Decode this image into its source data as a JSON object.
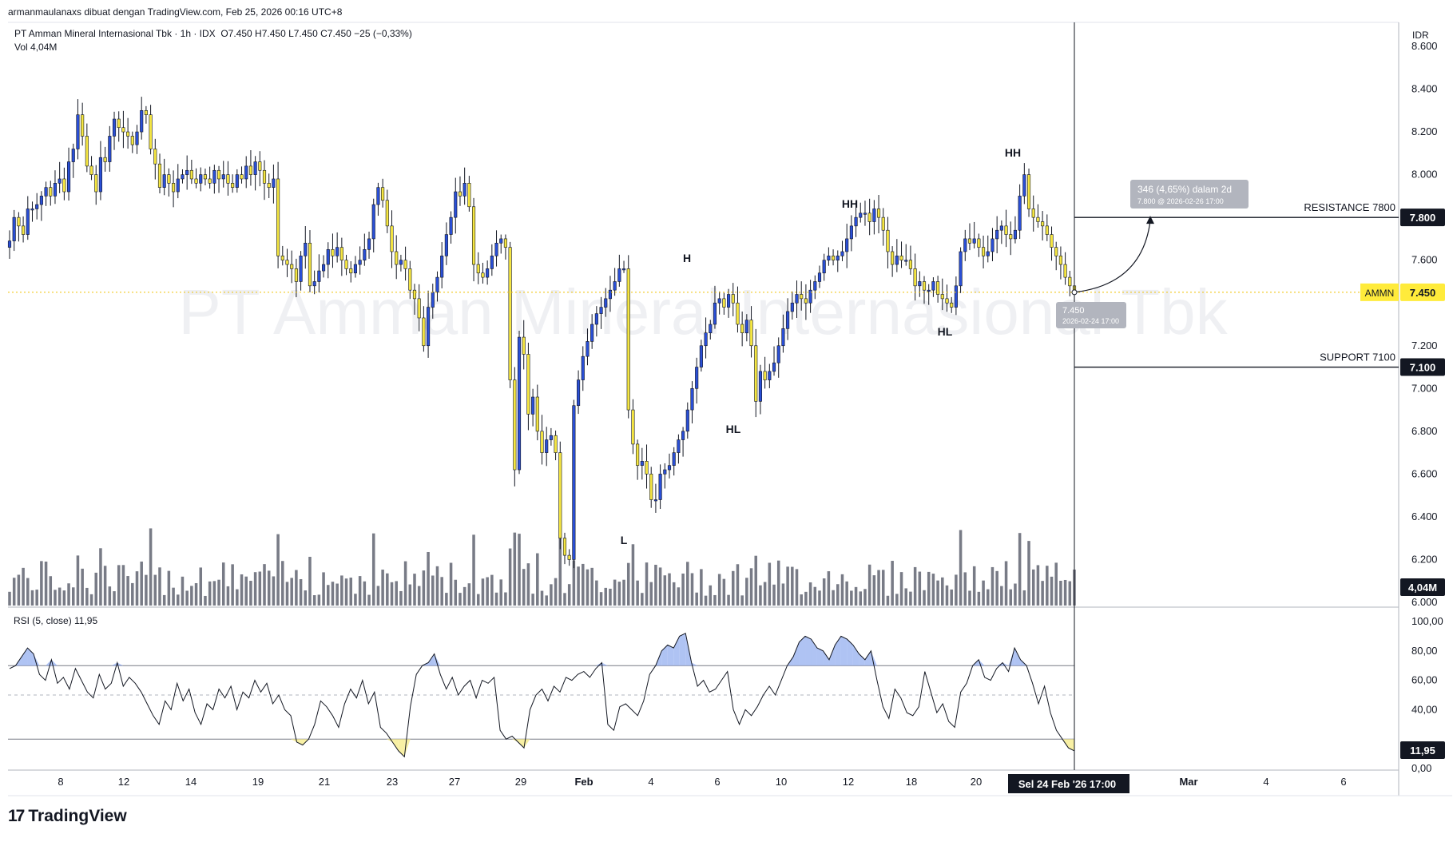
{
  "header": {
    "author_line": "armanmaulanaxs dibuat dengan TradingView.com, Feb 25, 2026 00:16 UTC+8",
    "symbol_line": "PT Amman Mineral Internasional Tbk · 1h · IDX",
    "ohlc": "O7.450  H7.450  L7.450  C7.450  −25 (−0,33%)",
    "volume_line": "Vol  4,04M",
    "currency": "IDR",
    "watermark": "PT Amman Mineral Internasional Tbk"
  },
  "brand": {
    "name": "TradingView",
    "logo_icon": "tradingview-logo-icon"
  },
  "colors": {
    "bull": "#2a4fd6",
    "bear": "#f5e642",
    "wick": "#131722",
    "volume": "#787b86",
    "rsi_line": "#131722",
    "rsi_ob_fill": "#9bb4f0",
    "rsi_os_fill": "#f7ee9a",
    "label_dark": "#131722",
    "label_current": "#ffeb3b",
    "annot_box": "#b2b5be"
  },
  "chart_data": {
    "type": "candlestick",
    "symbol": "AMMN",
    "timeframe": "1h",
    "y_axis": {
      "ticks": [
        6000,
        6200,
        6400,
        6600,
        6800,
        7000,
        7200,
        7400,
        7600,
        7800,
        8000,
        8200,
        8400,
        8600
      ],
      "tick_labels": [
        "6.000",
        "6.200",
        "6.400",
        "6.600",
        "6.800",
        "7.000",
        "7.200",
        "7.400",
        "7.600",
        "7.800",
        "8.000",
        "8.200",
        "8.400",
        "8.600"
      ],
      "range": [
        6000,
        8600
      ]
    },
    "x_axis": {
      "tick_labels": [
        "8",
        "12",
        "14",
        "19",
        "21",
        "23",
        "27",
        "29",
        "Feb",
        "4",
        "6",
        "10",
        "12",
        "18",
        "20",
        "Sel 24 Feb '26",
        "17:00",
        "Mar",
        "4",
        "6"
      ]
    },
    "closes": [
      7690,
      7800,
      7760,
      7720,
      7840,
      7840,
      7860,
      7900,
      7940,
      7900,
      7960,
      7980,
      7920,
      8060,
      8120,
      8280,
      8180,
      8040,
      8000,
      7920,
      8080,
      8060,
      8180,
      8260,
      8220,
      8200,
      8180,
      8140,
      8200,
      8300,
      8280,
      8120,
      8050,
      7940,
      8000,
      7960,
      7920,
      7980,
      8000,
      8020,
      7980,
      7960,
      8000,
      7980,
      7960,
      8020,
      7980,
      8000,
      7960,
      7940,
      8000,
      7980,
      8040,
      8000,
      8060,
      8020,
      7960,
      7940,
      7980,
      7620,
      7600,
      7580,
      7560,
      7500,
      7620,
      7680,
      7480,
      7500,
      7550,
      7580,
      7650,
      7620,
      7660,
      7600,
      7560,
      7540,
      7580,
      7600,
      7650,
      7700,
      7860,
      7940,
      7880,
      7760,
      7640,
      7580,
      7600,
      7560,
      7460,
      7420,
      7330,
      7200,
      7380,
      7450,
      7520,
      7620,
      7720,
      7800,
      7920,
      7900,
      7960,
      7850,
      7580,
      7540,
      7520,
      7560,
      7620,
      7680,
      7700,
      7660,
      7040,
      6620,
      7240,
      7160,
      6880,
      6960,
      6800,
      6700,
      6760,
      6780,
      6700,
      6300,
      6220,
      6200,
      6920,
      7040,
      7150,
      7220,
      7300,
      7350,
      7380,
      7420,
      7460,
      7500,
      7560,
      7560,
      6900,
      6740,
      6640,
      6660,
      6600,
      6480,
      6480,
      6600,
      6620,
      6640,
      6700,
      6760,
      6800,
      6900,
      7000,
      7100,
      7200,
      7260,
      7300,
      7400,
      7420,
      7380,
      7440,
      7400,
      7300,
      7260,
      7320,
      7200,
      6940,
      7080,
      7040,
      7080,
      7120,
      7200,
      7280,
      7360,
      7400,
      7440,
      7420,
      7400,
      7460,
      7500,
      7540,
      7600,
      7620,
      7600,
      7620,
      7640,
      7700,
      7760,
      7800,
      7820,
      7820,
      7780,
      7840,
      7800,
      7740,
      7640,
      7580,
      7620,
      7600,
      7600,
      7560,
      7480,
      7500,
      7460,
      7460,
      7500,
      7440,
      7420,
      7400,
      7380,
      7480,
      7640,
      7700,
      7680,
      7700,
      7660,
      7620,
      7640,
      7700,
      7740,
      7760,
      7720,
      7700,
      7740,
      7900,
      8000,
      7840,
      7800,
      7780,
      7760,
      7720,
      7660,
      7620,
      7580,
      7520,
      7480,
      7450
    ],
    "volume_peak_label": "4,04M",
    "rsi": {
      "label": "RSI (5, close)",
      "value_label": "11,95",
      "levels": [
        70,
        50,
        20
      ],
      "axis_ticks": [
        "100,00",
        "80,00",
        "60,00",
        "40,00",
        "20,00",
        "0,00"
      ],
      "values": [
        68,
        70,
        76,
        82,
        78,
        64,
        60,
        74,
        58,
        62,
        54,
        68,
        60,
        52,
        48,
        64,
        54,
        58,
        72,
        56,
        62,
        58,
        52,
        44,
        36,
        30,
        46,
        40,
        58,
        46,
        54,
        38,
        30,
        44,
        40,
        54,
        48,
        56,
        40,
        52,
        48,
        60,
        52,
        58,
        44,
        50,
        40,
        36,
        18,
        16,
        20,
        30,
        46,
        42,
        36,
        28,
        44,
        54,
        48,
        60,
        44,
        52,
        28,
        24,
        18,
        12,
        8,
        42,
        64,
        70,
        72,
        78,
        64,
        54,
        62,
        50,
        56,
        60,
        48,
        60,
        58,
        62,
        26,
        20,
        22,
        18,
        14,
        40,
        50,
        54,
        46,
        56,
        52,
        62,
        60,
        64,
        66,
        62,
        68,
        72,
        30,
        26,
        42,
        44,
        40,
        36,
        46,
        64,
        70,
        80,
        84,
        82,
        90,
        92,
        72,
        56,
        60,
        52,
        54,
        60,
        66,
        40,
        30,
        40,
        36,
        42,
        50,
        56,
        50,
        60,
        70,
        76,
        86,
        90,
        88,
        82,
        80,
        74,
        84,
        90,
        88,
        84,
        78,
        74,
        80,
        60,
        42,
        34,
        54,
        48,
        38,
        36,
        42,
        66,
        52,
        38,
        44,
        32,
        28,
        52,
        58,
        70,
        74,
        62,
        60,
        68,
        72,
        66,
        82,
        74,
        70,
        58,
        44,
        56,
        38,
        26,
        20,
        14,
        12
      ]
    },
    "annotations": {
      "structure_labels": [
        "HH",
        "HH",
        "H",
        "HL",
        "HL",
        "L"
      ],
      "resistance_label": "RESISTANCE 7800",
      "resistance_value": 7800,
      "resistance_tag": "7.800",
      "support_label": "SUPPORT 7100",
      "support_value": 7100,
      "support_tag": "7.100",
      "current_symbol": "AMMN",
      "current_price": 7450,
      "current_tag": "7.450",
      "projection_main": "346 (4,65%) dalam 2d",
      "projection_sub": "7.800 @ 2026-02-26  17:00",
      "cursor_price": "7.450",
      "cursor_time": "2026-02-24 17:00"
    }
  }
}
